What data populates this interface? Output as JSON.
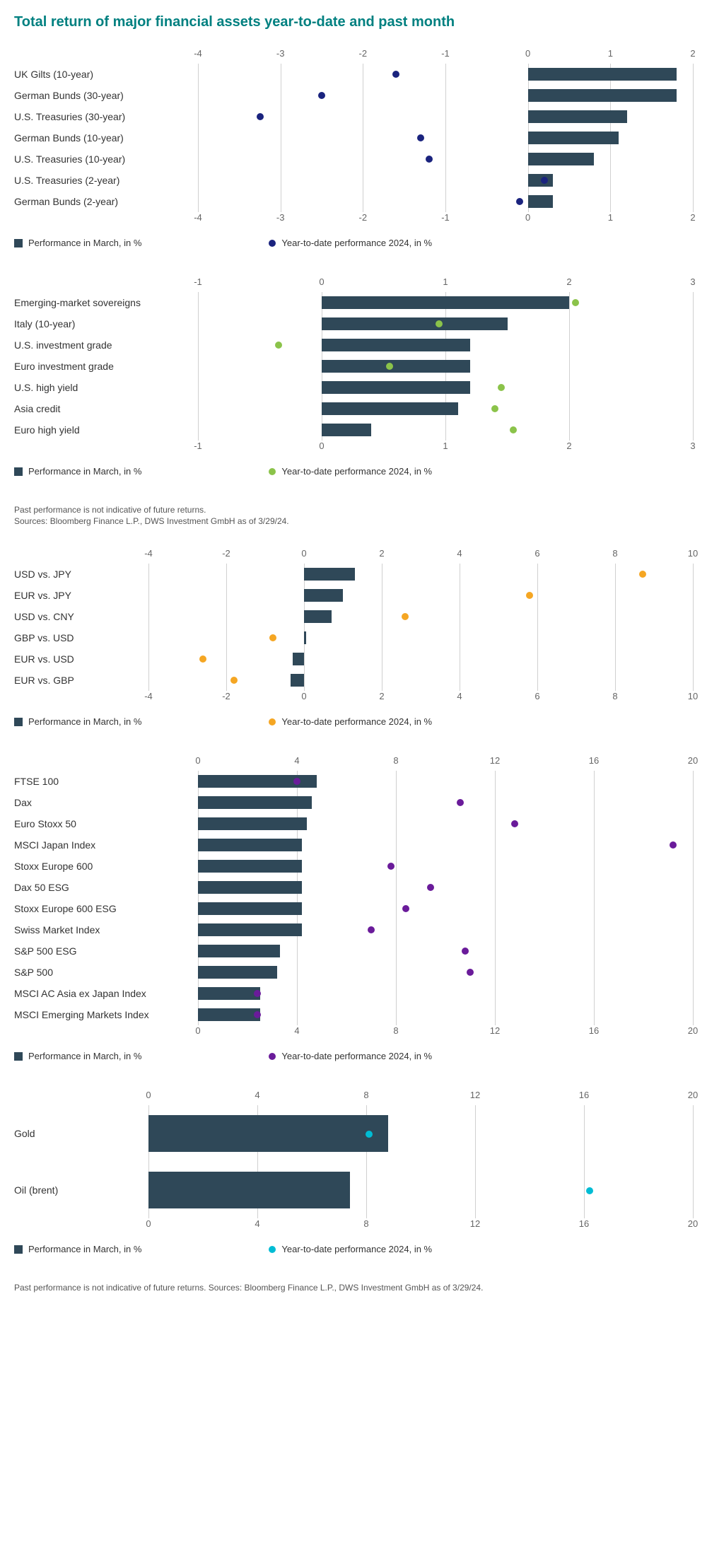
{
  "title": "Total return of major financial assets year-to-date and past month",
  "bar_color": "#2f4858",
  "grid_color": "#d0d0d0",
  "background_color": "#ffffff",
  "title_color": "#008080",
  "label_fontsize": 14,
  "axis_fontsize": 13,
  "legend_bar_label": "Performance in March, in %",
  "legend_dot_label": "Year-to-date performance 2024, in %",
  "footnote1_line1": "Past performance is not indicative of future returns.",
  "footnote1_line2": "Sources: Bloomberg Finance L.P., DWS Investment GmbH as of 3/29/24.",
  "footnote2": "Past performance is not indicative of future returns. Sources: Bloomberg Finance L.P., DWS Investment GmbH as of 3/29/24.",
  "charts": [
    {
      "id": "gov_bonds",
      "type": "bar_dot_horizontal",
      "label_col_width": 260,
      "dot_color": "#1a237e",
      "xlim": [
        -4,
        2
      ],
      "xtick_step": 1,
      "rows": [
        {
          "label": "UK Gilts (10-year)",
          "bar": 1.8,
          "dot": -1.6
        },
        {
          "label": "German Bunds (30-year)",
          "bar": 1.8,
          "dot": -2.5
        },
        {
          "label": "U.S. Treasuries (30-year)",
          "bar": 1.2,
          "dot": -3.25
        },
        {
          "label": "German Bunds (10-year)",
          "bar": 1.1,
          "dot": -1.3
        },
        {
          "label": "U.S. Treasuries (10-year)",
          "bar": 0.8,
          "dot": -1.2
        },
        {
          "label": "U.S. Treasuries (2-year)",
          "bar": 0.3,
          "dot": 0.2
        },
        {
          "label": "German Bunds (2-year)",
          "bar": 0.3,
          "dot": -0.1
        }
      ]
    },
    {
      "id": "credit",
      "type": "bar_dot_horizontal",
      "label_col_width": 260,
      "dot_color": "#8bc34a",
      "xlim": [
        -1,
        3
      ],
      "xtick_step": 1,
      "rows": [
        {
          "label": "Emerging-market sovereigns",
          "bar": 2.0,
          "dot": 2.05
        },
        {
          "label": "Italy (10-year)",
          "bar": 1.5,
          "dot": 0.95
        },
        {
          "label": "U.S. investment grade",
          "bar": 1.2,
          "dot": -0.35
        },
        {
          "label": "Euro investment grade",
          "bar": 1.2,
          "dot": 0.55
        },
        {
          "label": "U.S. high yield",
          "bar": 1.2,
          "dot": 1.45
        },
        {
          "label": "Asia credit",
          "bar": 1.1,
          "dot": 1.4
        },
        {
          "label": "Euro high yield",
          "bar": 0.4,
          "dot": 1.55
        }
      ]
    },
    {
      "id": "fx",
      "type": "bar_dot_horizontal",
      "label_col_width": 190,
      "dot_color": "#f5a623",
      "xlim": [
        -4,
        10
      ],
      "xtick_step": 2,
      "rows": [
        {
          "label": "USD vs. JPY",
          "bar": 1.3,
          "dot": 8.7
        },
        {
          "label": "EUR vs. JPY",
          "bar": 1.0,
          "dot": 5.8
        },
        {
          "label": "USD vs. CNY",
          "bar": 0.7,
          "dot": 2.6
        },
        {
          "label": "GBP vs. USD",
          "bar": 0.05,
          "dot": -0.8
        },
        {
          "label": "EUR vs. USD",
          "bar": -0.3,
          "dot": -2.6
        },
        {
          "label": "EUR vs. GBP",
          "bar": -0.35,
          "dot": -1.8
        }
      ]
    },
    {
      "id": "equities",
      "type": "bar_dot_horizontal",
      "label_col_width": 260,
      "dot_color": "#6a1b9a",
      "xlim": [
        0,
        20
      ],
      "xtick_step": 4,
      "rows": [
        {
          "label": "FTSE 100",
          "bar": 4.8,
          "dot": 4.0
        },
        {
          "label": "Dax",
          "bar": 4.6,
          "dot": 10.6
        },
        {
          "label": "Euro Stoxx 50",
          "bar": 4.4,
          "dot": 12.8
        },
        {
          "label": "MSCI Japan Index",
          "bar": 4.2,
          "dot": 19.2
        },
        {
          "label": "Stoxx Europe 600",
          "bar": 4.2,
          "dot": 7.8
        },
        {
          "label": "Dax 50 ESG",
          "bar": 4.2,
          "dot": 9.4
        },
        {
          "label": "Stoxx Europe 600 ESG",
          "bar": 4.2,
          "dot": 8.4
        },
        {
          "label": "Swiss Market Index",
          "bar": 4.2,
          "dot": 7.0
        },
        {
          "label": "S&P 500 ESG",
          "bar": 3.3,
          "dot": 10.8
        },
        {
          "label": "S&P 500",
          "bar": 3.2,
          "dot": 11.0
        },
        {
          "label": "MSCI AC Asia ex Japan Index",
          "bar": 2.5,
          "dot": 2.4
        },
        {
          "label": "MSCI Emerging Markets Index",
          "bar": 2.5,
          "dot": 2.4
        }
      ]
    },
    {
      "id": "commodities",
      "type": "bar_dot_horizontal",
      "label_col_width": 190,
      "dot_color": "#00bcd4",
      "xlim": [
        0,
        20
      ],
      "xtick_step": 4,
      "commodity": true,
      "rows": [
        {
          "label": "Gold",
          "bar": 8.8,
          "dot": 8.1
        },
        {
          "label": "Oil (brent)",
          "bar": 7.4,
          "dot": 16.2
        }
      ]
    }
  ]
}
